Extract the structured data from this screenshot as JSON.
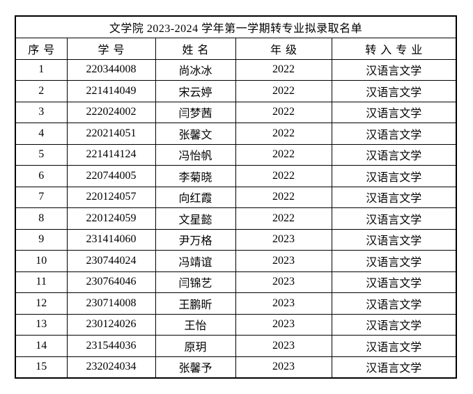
{
  "page": {
    "background_color": "#ffffff",
    "text_color": "#000000",
    "border_color": "#000000"
  },
  "table": {
    "title": "文学院 2023-2024 学年第一学期转专业拟录取名单",
    "columns": [
      {
        "key": "no",
        "label": "序号"
      },
      {
        "key": "student_id",
        "label": "学号"
      },
      {
        "key": "name",
        "label": "姓名"
      },
      {
        "key": "grade",
        "label": "年级"
      },
      {
        "key": "major",
        "label": "转入专业"
      }
    ],
    "rows": [
      {
        "no": "1",
        "student_id": "220344008",
        "name": "尚冰冰",
        "grade": "2022",
        "major": "汉语言文学"
      },
      {
        "no": "2",
        "student_id": "221414049",
        "name": "宋云婷",
        "grade": "2022",
        "major": "汉语言文学"
      },
      {
        "no": "3",
        "student_id": "222024002",
        "name": "闫梦茜",
        "grade": "2022",
        "major": "汉语言文学"
      },
      {
        "no": "4",
        "student_id": "220214051",
        "name": "张馨文",
        "grade": "2022",
        "major": "汉语言文学"
      },
      {
        "no": "5",
        "student_id": "221414124",
        "name": "冯怡帆",
        "grade": "2022",
        "major": "汉语言文学"
      },
      {
        "no": "6",
        "student_id": "220744005",
        "name": "李菊晓",
        "grade": "2022",
        "major": "汉语言文学"
      },
      {
        "no": "7",
        "student_id": "220124057",
        "name": "向红霞",
        "grade": "2022",
        "major": "汉语言文学"
      },
      {
        "no": "8",
        "student_id": "220124059",
        "name": "文星懿",
        "grade": "2022",
        "major": "汉语言文学"
      },
      {
        "no": "9",
        "student_id": "231414060",
        "name": "尹万格",
        "grade": "2023",
        "major": "汉语言文学"
      },
      {
        "no": "10",
        "student_id": "230744024",
        "name": "冯靖谊",
        "grade": "2023",
        "major": "汉语言文学"
      },
      {
        "no": "11",
        "student_id": "230764046",
        "name": "闫锦艺",
        "grade": "2023",
        "major": "汉语言文学"
      },
      {
        "no": "12",
        "student_id": "230714008",
        "name": "王鹏昕",
        "grade": "2023",
        "major": "汉语言文学"
      },
      {
        "no": "13",
        "student_id": "230124026",
        "name": "王怡",
        "grade": "2023",
        "major": "汉语言文学"
      },
      {
        "no": "14",
        "student_id": "231544036",
        "name": "原玥",
        "grade": "2023",
        "major": "汉语言文学"
      },
      {
        "no": "15",
        "student_id": "232024034",
        "name": "张馨予",
        "grade": "2023",
        "major": "汉语言文学"
      }
    ]
  }
}
